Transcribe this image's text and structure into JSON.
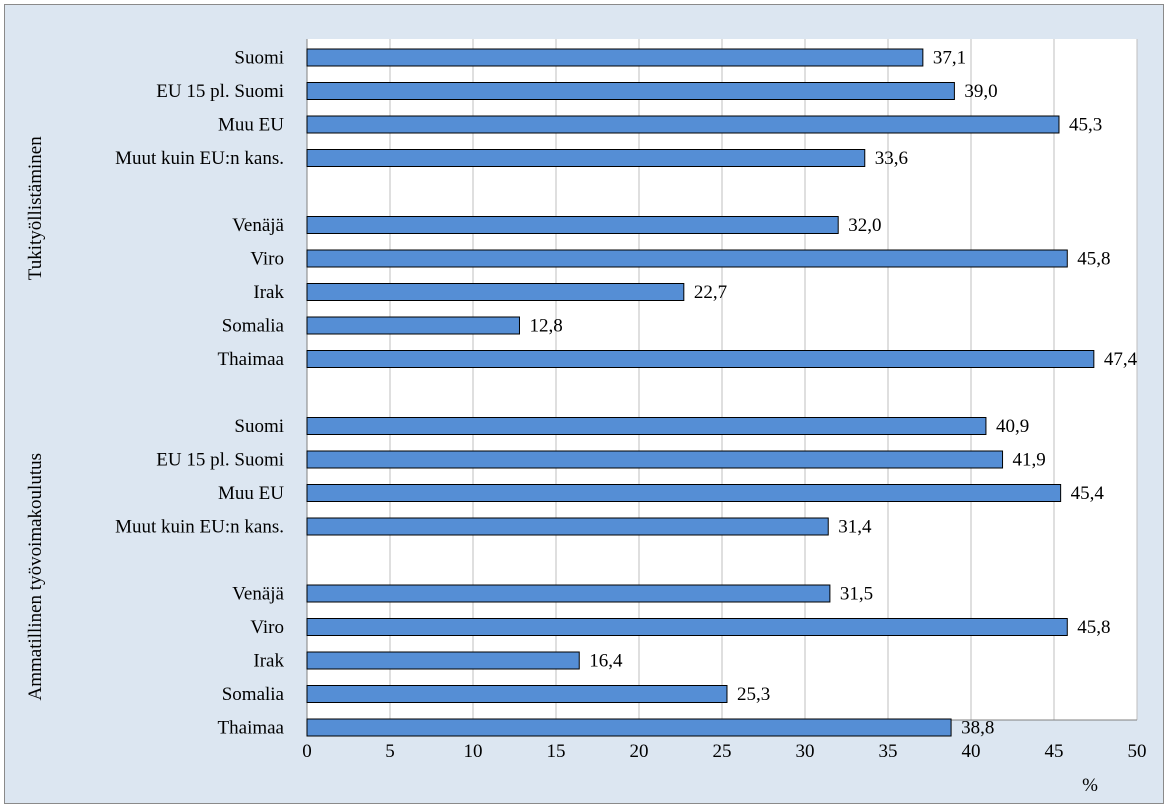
{
  "chart_data": {
    "type": "bar",
    "orientation": "horizontal",
    "groups": [
      {
        "label": "Tukityöllistäminen",
        "categories": [
          "Suomi",
          "EU 15 pl. Suomi",
          "Muu EU",
          "Muut kuin EU:n kans.",
          "Venäjä",
          "Viro",
          "Irak",
          "Somalia",
          "Thaimaa"
        ],
        "values": [
          37.1,
          39.0,
          45.3,
          33.6,
          32.0,
          45.8,
          22.7,
          12.8,
          47.4
        ],
        "value_labels": [
          "37,1",
          "39,0",
          "45,3",
          "33,6",
          "32,0",
          "45,8",
          "22,7",
          "12,8",
          "47,4"
        ]
      },
      {
        "label": "Ammatillinen työvoimakoulutus",
        "categories": [
          "Suomi",
          "EU 15 pl. Suomi",
          "Muu EU",
          "Muut kuin EU:n kans.",
          "Venäjä",
          "Viro",
          "Irak",
          "Somalia",
          "Thaimaa"
        ],
        "values": [
          40.9,
          41.9,
          45.4,
          31.4,
          31.5,
          45.8,
          16.4,
          25.3,
          38.8
        ],
        "value_labels": [
          "40,9",
          "41,9",
          "45,4",
          "31,4",
          "31,5",
          "45,8",
          "16,4",
          "25,3",
          "38,8"
        ]
      }
    ],
    "xlim": [
      0,
      50
    ],
    "xticks": [
      "0",
      "5",
      "10",
      "15",
      "20",
      "25",
      "30",
      "35",
      "40",
      "45",
      "50"
    ],
    "xlabel": "%",
    "grid": "vertical",
    "legend": "none",
    "colors": {
      "bar": "#558ed5",
      "bar_border": "#000000",
      "background": "#dce6f1",
      "plot_area": "#ffffff",
      "grid": "#bfbfbf"
    }
  }
}
